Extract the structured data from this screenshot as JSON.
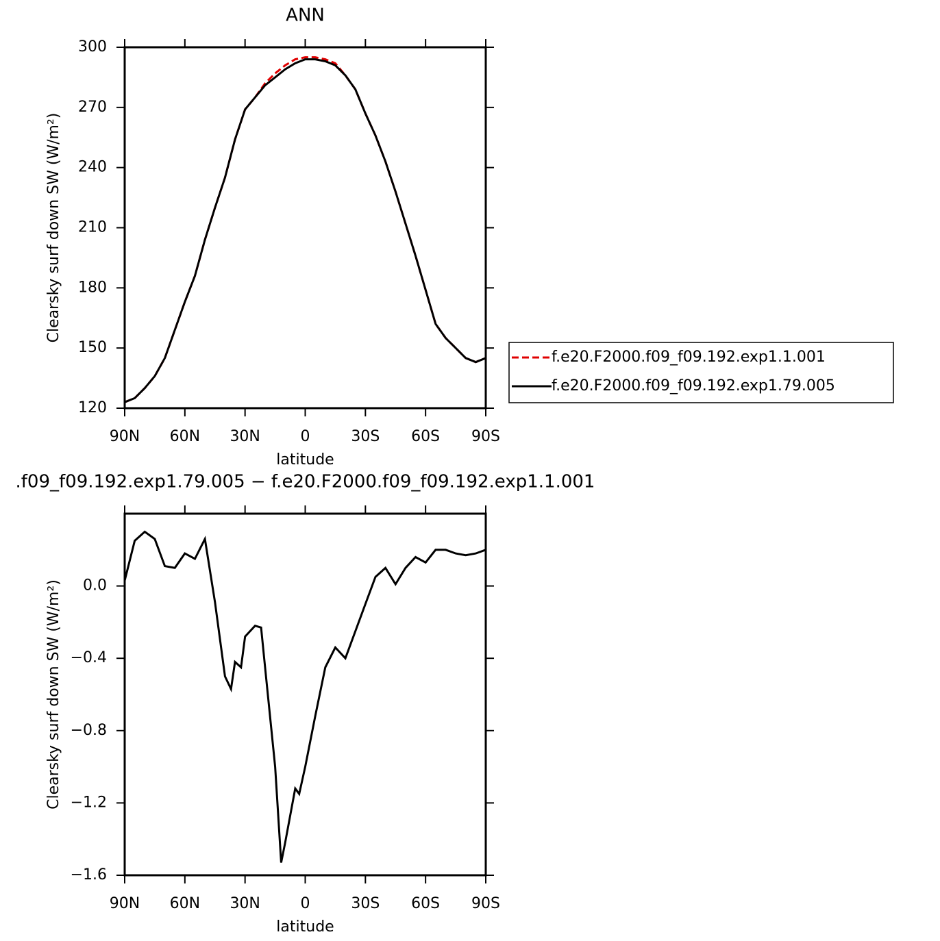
{
  "chart_data": [
    {
      "type": "line",
      "title": "ANN",
      "xlabel": "latitude",
      "ylabel": "Clearsky surf down SW (W/m²)",
      "x": [
        90,
        85,
        80,
        75,
        70,
        65,
        60,
        55,
        50,
        45,
        40,
        35,
        30,
        25,
        20,
        15,
        10,
        5,
        0,
        -5,
        -10,
        -15,
        -20,
        -25,
        -30,
        -35,
        -40,
        -45,
        -50,
        -55,
        -60,
        -65,
        -70,
        -75,
        -80,
        -85,
        -90
      ],
      "series": [
        {
          "name": "f.e20.F2000.f09_f09.192.exp1.1.001",
          "color": "#e00000",
          "style": "dashed",
          "values": [
            123,
            125,
            130,
            136,
            145,
            159,
            173,
            186,
            204,
            220,
            235,
            254,
            269,
            275,
            282,
            287,
            291,
            294,
            295,
            295,
            294,
            292,
            286,
            279,
            267,
            256,
            243,
            228,
            212,
            196,
            179,
            162,
            155,
            150,
            145,
            143,
            145
          ]
        },
        {
          "name": "f.e20.F2000.f09_f09.192.exp1.79.005",
          "color": "#000000",
          "style": "solid",
          "values": [
            123,
            125,
            130,
            136,
            145,
            159,
            173,
            186,
            204,
            220,
            235,
            254,
            269,
            275,
            281,
            285,
            289,
            292,
            294,
            294,
            293,
            291,
            286,
            279,
            267,
            256,
            243,
            228,
            212,
            196,
            179,
            162,
            155,
            150,
            145,
            143,
            145
          ]
        }
      ],
      "xlim": [
        90,
        -90
      ],
      "xticks": [
        {
          "value": 90,
          "label": "90N"
        },
        {
          "value": 60,
          "label": "60N"
        },
        {
          "value": 30,
          "label": "30N"
        },
        0,
        {
          "value": -30,
          "label": "30S"
        },
        {
          "value": -60,
          "label": "60S"
        },
        {
          "value": -90,
          "label": "90S"
        }
      ],
      "ylim": [
        120,
        300
      ],
      "yticks": [
        120,
        150,
        180,
        210,
        240,
        270,
        300
      ],
      "legend": "right"
    },
    {
      "type": "line",
      "title": ".f09_f09.192.exp1.79.005 − f.e20.F2000.f09_f09.192.exp1.1.001",
      "xlabel": "latitude",
      "ylabel": "Clearsky surf down SW (W/m²)",
      "x": [
        90,
        85,
        80,
        75,
        70,
        65,
        60,
        55,
        50,
        45,
        40,
        37,
        35,
        32,
        30,
        25,
        22,
        20,
        15,
        12,
        10,
        5,
        3,
        0,
        -5,
        -10,
        -15,
        -20,
        -25,
        -30,
        -35,
        -40,
        -45,
        -50,
        -55,
        -60,
        -65,
        -70,
        -75,
        -80,
        -85,
        -90
      ],
      "color": "#000000",
      "values": [
        0.03,
        0.25,
        0.3,
        0.26,
        0.11,
        0.1,
        0.18,
        0.15,
        0.26,
        -0.09,
        -0.5,
        -0.57,
        -0.42,
        -0.45,
        -0.28,
        -0.22,
        -0.23,
        -0.45,
        -1.0,
        -1.53,
        -1.42,
        -1.12,
        -1.15,
        -1.0,
        -0.72,
        -0.45,
        -0.34,
        -0.4,
        -0.25,
        -0.1,
        0.05,
        0.1,
        0.01,
        0.1,
        0.16,
        0.13,
        0.2,
        0.2,
        0.18,
        0.17,
        0.18,
        0.2
      ],
      "xlim": [
        90,
        -90
      ],
      "xticks": [
        {
          "value": 90,
          "label": "90N"
        },
        {
          "value": 60,
          "label": "60N"
        },
        {
          "value": 30,
          "label": "30N"
        },
        0,
        {
          "value": -30,
          "label": "30S"
        },
        {
          "value": -60,
          "label": "60S"
        },
        {
          "value": -90,
          "label": "90S"
        }
      ],
      "ylim": [
        -1.6,
        0.4
      ],
      "yticks": [
        {
          "value": -1.6,
          "label": "−1.6"
        },
        {
          "value": -1.2,
          "label": "−1.2"
        },
        {
          "value": -0.8,
          "label": "−0.8"
        },
        {
          "value": -0.4,
          "label": "−0.4"
        },
        {
          "value": 0,
          "label": "0.0"
        }
      ]
    }
  ]
}
